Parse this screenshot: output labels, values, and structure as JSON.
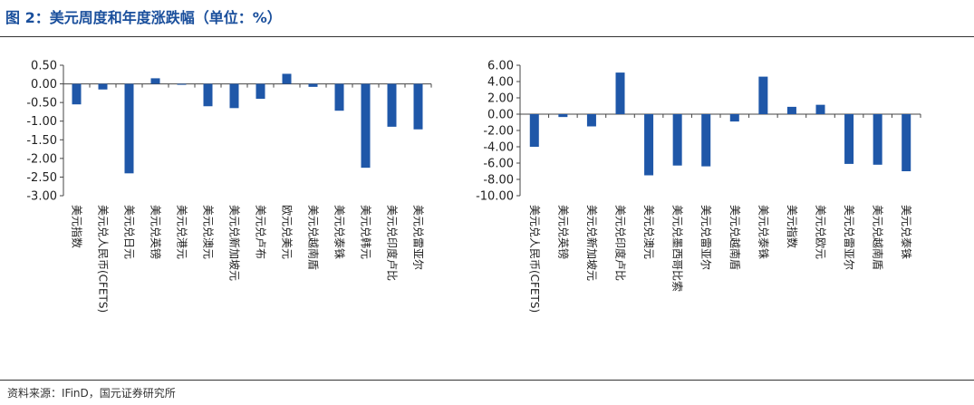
{
  "figure_title": "图 2：美元周度和年度涨跌幅（单位：%）",
  "source": "资料来源：IFinD，国元证券研究所",
  "colors": {
    "bar": "#1f57a8",
    "title": "#1a4f9c"
  },
  "chart_data": [
    {
      "type": "bar",
      "ylim": [
        -3.0,
        0.5
      ],
      "yticks": [
        "0.50",
        "0.00",
        "-0.50",
        "-1.00",
        "-1.50",
        "-2.00",
        "-2.50",
        "-3.00"
      ],
      "categories": [
        "美元指数",
        "美元兑人民币(CFETS)",
        "美元兑日元",
        "美元兑英镑",
        "美元兑港元",
        "美元兑澳元",
        "美元兑新加坡元",
        "美元兑卢布",
        "欧元兑美元",
        "美元兑越南盾",
        "美元兑泰铢",
        "美元兑韩元",
        "美元兑印度卢比",
        "美元兑雷亚尔"
      ],
      "values": [
        -0.55,
        -0.15,
        -2.4,
        0.15,
        -0.02,
        -0.6,
        -0.65,
        -0.4,
        0.27,
        -0.08,
        -0.72,
        -2.25,
        -1.15,
        -1.22
      ]
    },
    {
      "type": "bar",
      "ylim": [
        -10.0,
        6.0
      ],
      "yticks": [
        "6.00",
        "4.00",
        "2.00",
        "0.00",
        "-2.00",
        "-4.00",
        "-6.00",
        "-8.00",
        "-10.00"
      ],
      "categories": [
        "美元兑人民币(CFETS)",
        "美元兑英镑",
        "美元兑新加坡元",
        "美元兑印度卢比",
        "美元兑澳元",
        "美元兑墨西哥比索",
        "美元兑雷亚尔",
        "美元兑越南盾",
        "美元兑泰铢",
        "美元指数",
        "美元兑欧元",
        "美元兑雷亚尔",
        "美元兑越南盾",
        "美元兑泰铢"
      ],
      "values": [
        -4.0,
        -0.35,
        -1.5,
        5.1,
        -7.5,
        -6.3,
        -6.4,
        -0.9,
        4.6,
        0.9,
        1.15,
        -6.1,
        -6.2,
        -7.0
      ]
    }
  ]
}
